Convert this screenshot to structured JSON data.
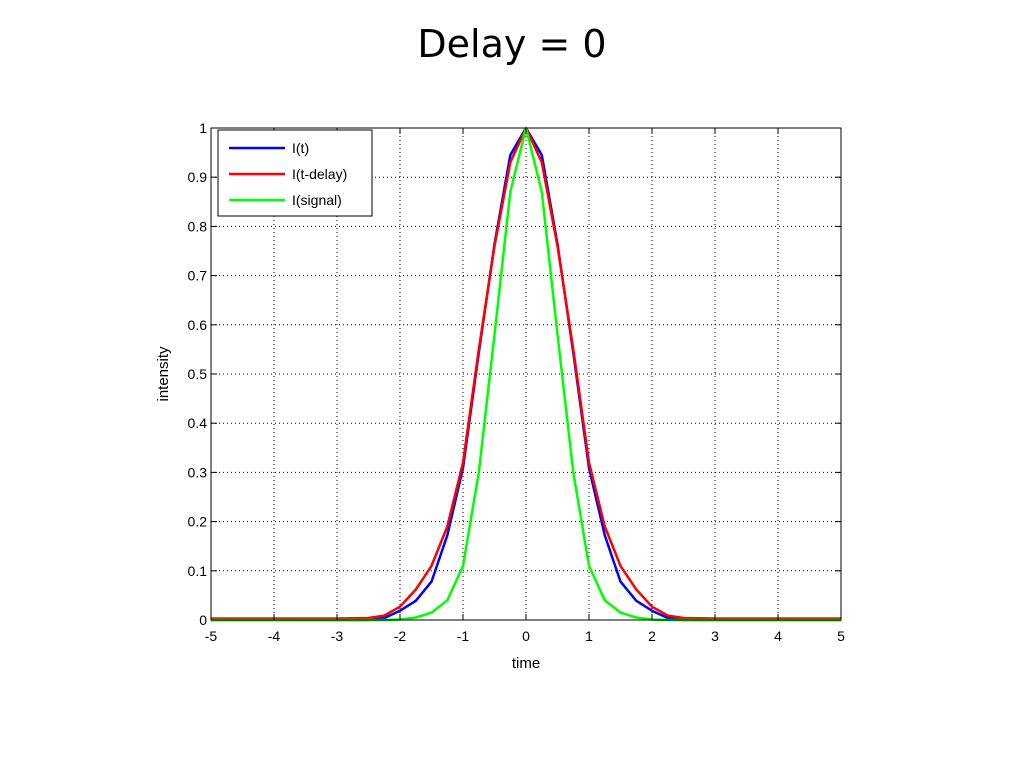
{
  "slide": {
    "title": "Delay = 0"
  },
  "chart_data": {
    "type": "line",
    "title": "Delay = 0",
    "xlabel": "time",
    "ylabel": "intensity",
    "xlim": [
      -5,
      5
    ],
    "ylim": [
      0,
      1
    ],
    "x_ticks": [
      "-5",
      "-4",
      "-3",
      "-2",
      "-1",
      "0",
      "1",
      "2",
      "3",
      "4",
      "5"
    ],
    "y_ticks": [
      "0",
      "0.1",
      "0.2",
      "0.3",
      "0.4",
      "0.5",
      "0.6",
      "0.7",
      "0.8",
      "0.9",
      "1"
    ],
    "grid": true,
    "legend_position": "top-left",
    "x": [
      -5,
      -4.5,
      -4,
      -3.5,
      -3,
      -2.5,
      -2.25,
      -2,
      -1.75,
      -1.5,
      -1.25,
      -1,
      -0.75,
      -0.5,
      -0.25,
      0,
      0.25,
      0.5,
      0.75,
      1,
      1.25,
      1.5,
      1.75,
      2,
      2.25,
      2.5,
      3,
      3.5,
      4,
      4.5,
      5
    ],
    "series": [
      {
        "name": "I(t)",
        "color": "#0000ff",
        "values": [
          0,
          0,
          0,
          0,
          0,
          0,
          0.004,
          0.019,
          0.039,
          0.078,
          0.172,
          0.309,
          0.543,
          0.764,
          0.945,
          1,
          0.945,
          0.764,
          0.543,
          0.309,
          0.172,
          0.078,
          0.039,
          0.019,
          0.004,
          0,
          0,
          0,
          0,
          0,
          0
        ]
      },
      {
        "name": "I(t-delay)",
        "color": "#ff0000",
        "values": [
          0.003,
          0.003,
          0.003,
          0.003,
          0.003,
          0.004,
          0.009,
          0.027,
          0.062,
          0.11,
          0.19,
          0.32,
          0.55,
          0.76,
          0.93,
          1,
          0.93,
          0.76,
          0.55,
          0.32,
          0.19,
          0.11,
          0.062,
          0.027,
          0.009,
          0.004,
          0.003,
          0.003,
          0.003,
          0.003,
          0.003
        ]
      },
      {
        "name": "I(signal)",
        "color": "#00ff00",
        "values": [
          0,
          0,
          0,
          0,
          0,
          0,
          0,
          0.001,
          0.005,
          0.015,
          0.04,
          0.11,
          0.3,
          0.58,
          0.87,
          1,
          0.87,
          0.58,
          0.3,
          0.11,
          0.04,
          0.015,
          0.005,
          0.001,
          0,
          0,
          0,
          0,
          0,
          0,
          0
        ]
      }
    ]
  }
}
